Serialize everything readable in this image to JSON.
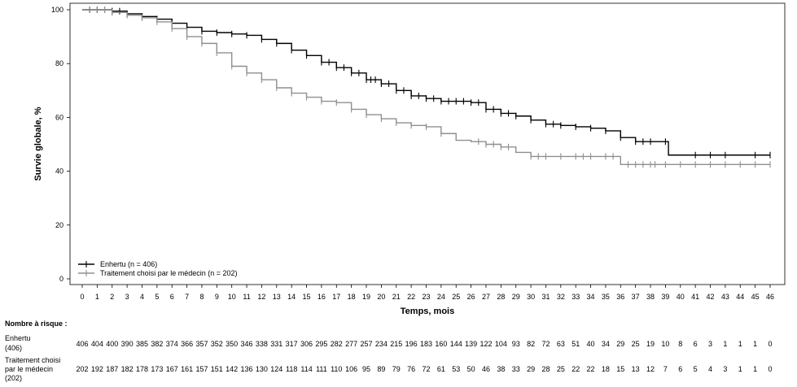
{
  "chart_data": {
    "type": "line",
    "subtype": "kaplan-meier",
    "xlabel": "Temps, mois",
    "ylabel": "Survie globale, %",
    "xlim": [
      0,
      46
    ],
    "ylim": [
      0,
      100
    ],
    "xticks": [
      0,
      1,
      2,
      3,
      4,
      5,
      6,
      7,
      8,
      9,
      10,
      11,
      12,
      13,
      14,
      15,
      16,
      17,
      18,
      19,
      20,
      21,
      22,
      23,
      24,
      25,
      26,
      27,
      28,
      29,
      30,
      31,
      32,
      33,
      34,
      35,
      36,
      37,
      38,
      39,
      40,
      41,
      42,
      43,
      44,
      45,
      46
    ],
    "yticks": [
      0,
      20,
      40,
      60,
      80,
      100
    ],
    "grid": false,
    "legend_position": "bottom-left",
    "series": [
      {
        "name": "Enhertu (n = 406)",
        "color": "#000000",
        "points": [
          [
            0,
            100
          ],
          [
            1,
            100
          ],
          [
            2,
            99.5
          ],
          [
            3,
            98.5
          ],
          [
            4,
            97.5
          ],
          [
            5,
            96.5
          ],
          [
            6,
            95
          ],
          [
            7,
            93.5
          ],
          [
            8,
            92
          ],
          [
            9,
            91.5
          ],
          [
            10,
            91
          ],
          [
            11,
            90.5
          ],
          [
            12,
            89
          ],
          [
            13,
            87.5
          ],
          [
            14,
            85
          ],
          [
            15,
            83
          ],
          [
            16,
            80.5
          ],
          [
            17,
            78.5
          ],
          [
            18,
            76.5
          ],
          [
            19,
            74
          ],
          [
            20,
            72.5
          ],
          [
            21,
            70
          ],
          [
            22,
            68
          ],
          [
            23,
            67
          ],
          [
            24,
            66
          ],
          [
            25,
            66
          ],
          [
            26,
            65.5
          ],
          [
            27,
            63
          ],
          [
            28,
            61.5
          ],
          [
            29,
            60.5
          ],
          [
            30,
            59
          ],
          [
            31,
            57.5
          ],
          [
            32,
            57
          ],
          [
            33,
            56.5
          ],
          [
            34,
            56
          ],
          [
            35,
            55
          ],
          [
            36,
            52.5
          ],
          [
            37,
            51
          ],
          [
            38,
            51
          ],
          [
            39,
            51
          ],
          [
            39.2,
            46
          ],
          [
            46,
            46
          ]
        ],
        "censors": [
          0.5,
          1,
          1.5,
          2,
          2.5,
          3,
          4,
          5,
          6,
          7,
          8,
          9,
          10,
          11,
          12,
          13,
          14,
          15,
          16,
          16.5,
          17,
          17.5,
          18,
          18.5,
          19,
          19.3,
          19.6,
          20,
          20.5,
          21,
          21.5,
          22,
          22.5,
          23,
          23.5,
          24,
          24.5,
          25,
          25.5,
          26,
          26.5,
          27,
          27.5,
          28,
          28.5,
          29,
          30,
          31,
          31.5,
          32,
          33,
          34,
          35,
          36,
          37,
          37.5,
          38,
          39,
          41,
          42,
          43,
          45,
          46
        ]
      },
      {
        "name": "Traitement choisi par le médecin (n = 202)",
        "color": "#8f8f8f",
        "points": [
          [
            0,
            100
          ],
          [
            1,
            100
          ],
          [
            2,
            99
          ],
          [
            3,
            98
          ],
          [
            4,
            97
          ],
          [
            5,
            95.5
          ],
          [
            6,
            93
          ],
          [
            7,
            90
          ],
          [
            8,
            87.5
          ],
          [
            9,
            84
          ],
          [
            10,
            79
          ],
          [
            11,
            76.5
          ],
          [
            12,
            74
          ],
          [
            13,
            71
          ],
          [
            14,
            69
          ],
          [
            15,
            67.5
          ],
          [
            16,
            66
          ],
          [
            17,
            65.5
          ],
          [
            18,
            63
          ],
          [
            19,
            61
          ],
          [
            20,
            59.5
          ],
          [
            21,
            58
          ],
          [
            22,
            57
          ],
          [
            23,
            56.5
          ],
          [
            24,
            54
          ],
          [
            25,
            51.5
          ],
          [
            26,
            51
          ],
          [
            27,
            50
          ],
          [
            28,
            49
          ],
          [
            29,
            47
          ],
          [
            30,
            45.5
          ],
          [
            33,
            45.5
          ],
          [
            35,
            45.5
          ],
          [
            35.8,
            45.5
          ],
          [
            36,
            42.5
          ],
          [
            46,
            42.5
          ]
        ],
        "censors": [
          0.5,
          1,
          1.5,
          2,
          3,
          4,
          5,
          6,
          7,
          8,
          9,
          10,
          11,
          12,
          13,
          14,
          15,
          16,
          17,
          18,
          19,
          20,
          21,
          22,
          23,
          24,
          26.5,
          27,
          27.5,
          28,
          28.5,
          30,
          30.5,
          31,
          32,
          33,
          33.5,
          34,
          35,
          35.5,
          36.5,
          37,
          37.5,
          38,
          38.3,
          39,
          40,
          41,
          42,
          43,
          44,
          45,
          46
        ]
      }
    ],
    "legend": [
      "Enhertu (n = 406)",
      "Traitement choisi par le médecin (n = 202)"
    ],
    "risk_table": {
      "title": "Nombre à risque :",
      "rows": [
        {
          "label_lines": [
            "Enhertu",
            "(406)"
          ],
          "values": [
            "406",
            "404",
            "400",
            "390",
            "385",
            "382",
            "374",
            "366",
            "357",
            "352",
            "350",
            "346",
            "338",
            "331",
            "317",
            "306",
            "295",
            "282",
            "277",
            "257",
            "234",
            "215",
            "196",
            "183",
            "160",
            "144",
            "139",
            "122",
            "104",
            "93",
            "82",
            "72",
            "63",
            "51",
            "40",
            "34",
            "29",
            "25",
            "19",
            "10",
            "8",
            "6",
            "3",
            "1",
            "1",
            "1",
            "0"
          ]
        },
        {
          "label_lines": [
            "Traitement choisi",
            "par le médecin",
            "(202)"
          ],
          "values": [
            "202",
            "192",
            "187",
            "182",
            "178",
            "173",
            "167",
            "161",
            "157",
            "151",
            "142",
            "136",
            "130",
            "124",
            "118",
            "114",
            "111",
            "110",
            "106",
            "95",
            "89",
            "79",
            "76",
            "72",
            "61",
            "53",
            "50",
            "46",
            "38",
            "33",
            "29",
            "28",
            "25",
            "22",
            "22",
            "18",
            "15",
            "13",
            "12",
            "7",
            "6",
            "5",
            "4",
            "3",
            "1",
            "1",
            "0"
          ]
        }
      ]
    }
  }
}
